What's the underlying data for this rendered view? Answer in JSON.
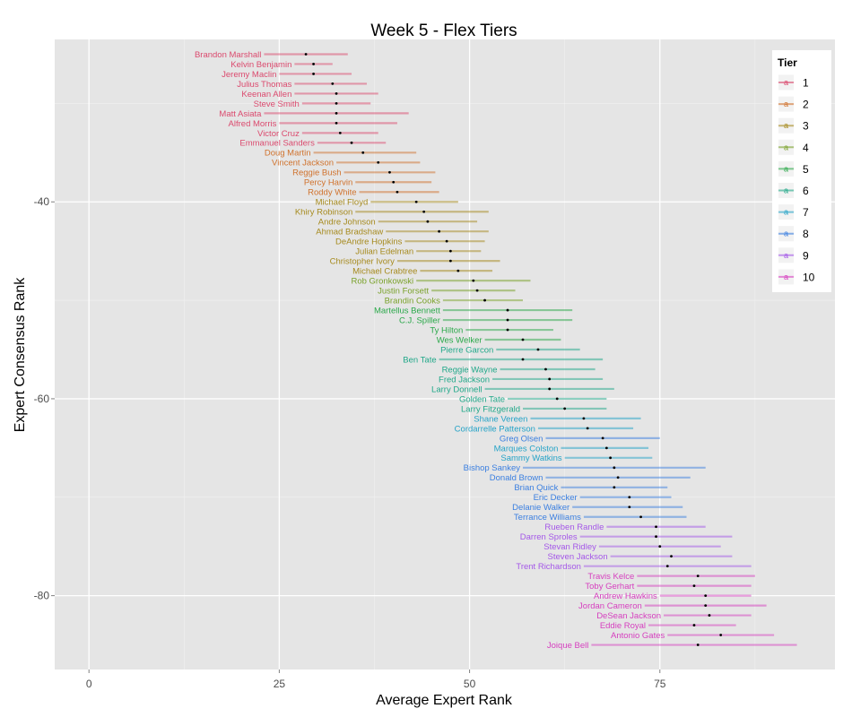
{
  "chart_data": {
    "type": "scatter",
    "title": "Week 5 - Flex Tiers",
    "xlabel": "Average Expert Rank",
    "ylabel": "Expert Consensus Rank",
    "xlim": [
      -4.5,
      98
    ],
    "ylim": [
      -87.5,
      -23.5
    ],
    "xticks": [
      0,
      25,
      50,
      75
    ],
    "yticks": [
      -40,
      -60,
      -80
    ],
    "grid": true,
    "legend": {
      "title": "Tier",
      "placement": "right",
      "labels": [
        "1",
        "2",
        "3",
        "4",
        "5",
        "6",
        "7",
        "8",
        "9",
        "10"
      ]
    },
    "tier_colors": [
      "#db4a6e",
      "#d0722d",
      "#a68a1e",
      "#7aa12a",
      "#2ba84a",
      "#21a889",
      "#25a3c7",
      "#3b7fe0",
      "#a457e8",
      "#d63fbf"
    ],
    "players": [
      {
        "name": "Brandon Marshall",
        "tier": 1,
        "x": 28.5,
        "lo": 23,
        "hi": 34,
        "y": -25
      },
      {
        "name": "Kelvin Benjamin",
        "tier": 1,
        "x": 29.5,
        "lo": 27,
        "hi": 32,
        "y": -26
      },
      {
        "name": "Jeremy Maclin",
        "tier": 1,
        "x": 29.5,
        "lo": 25,
        "hi": 34.5,
        "y": -27
      },
      {
        "name": "Julius Thomas",
        "tier": 1,
        "x": 32,
        "lo": 27,
        "hi": 36.5,
        "y": -28
      },
      {
        "name": "Keenan Allen",
        "tier": 1,
        "x": 32.5,
        "lo": 27,
        "hi": 38,
        "y": -29
      },
      {
        "name": "Steve Smith",
        "tier": 1,
        "x": 32.5,
        "lo": 28,
        "hi": 37,
        "y": -30
      },
      {
        "name": "Matt Asiata",
        "tier": 1,
        "x": 32.5,
        "lo": 23,
        "hi": 42,
        "y": -31
      },
      {
        "name": "Alfred Morris",
        "tier": 1,
        "x": 32.5,
        "lo": 25,
        "hi": 40.5,
        "y": -32
      },
      {
        "name": "Victor Cruz",
        "tier": 1,
        "x": 33,
        "lo": 28,
        "hi": 38,
        "y": -33
      },
      {
        "name": "Emmanuel Sanders",
        "tier": 1,
        "x": 34.5,
        "lo": 30,
        "hi": 39,
        "y": -34
      },
      {
        "name": "Doug Martin",
        "tier": 2,
        "x": 36,
        "lo": 29.5,
        "hi": 43,
        "y": -35
      },
      {
        "name": "Vincent Jackson",
        "tier": 2,
        "x": 38,
        "lo": 32.5,
        "hi": 43.5,
        "y": -36
      },
      {
        "name": "Reggie Bush",
        "tier": 2,
        "x": 39.5,
        "lo": 33.5,
        "hi": 45.5,
        "y": -37
      },
      {
        "name": "Percy Harvin",
        "tier": 2,
        "x": 40,
        "lo": 35,
        "hi": 45,
        "y": -38
      },
      {
        "name": "Roddy White",
        "tier": 2,
        "x": 40.5,
        "lo": 35.5,
        "hi": 46,
        "y": -39
      },
      {
        "name": "Michael Floyd",
        "tier": 3,
        "x": 43,
        "lo": 37,
        "hi": 48.5,
        "y": -40
      },
      {
        "name": "Khiry Robinson",
        "tier": 3,
        "x": 44,
        "lo": 35,
        "hi": 52.5,
        "y": -41
      },
      {
        "name": "Andre Johnson",
        "tier": 3,
        "x": 44.5,
        "lo": 38,
        "hi": 51,
        "y": -42
      },
      {
        "name": "Ahmad Bradshaw",
        "tier": 3,
        "x": 46,
        "lo": 39,
        "hi": 52.5,
        "y": -43
      },
      {
        "name": "DeAndre Hopkins",
        "tier": 3,
        "x": 47,
        "lo": 41.5,
        "hi": 52,
        "y": -44
      },
      {
        "name": "Julian Edelman",
        "tier": 3,
        "x": 47.5,
        "lo": 43,
        "hi": 51.5,
        "y": -45
      },
      {
        "name": "Christopher Ivory",
        "tier": 3,
        "x": 47.5,
        "lo": 40.5,
        "hi": 54,
        "y": -46
      },
      {
        "name": "Michael Crabtree",
        "tier": 3,
        "x": 48.5,
        "lo": 43.5,
        "hi": 53,
        "y": -47
      },
      {
        "name": "Rob Gronkowski",
        "tier": 4,
        "x": 50.5,
        "lo": 43,
        "hi": 58,
        "y": -48
      },
      {
        "name": "Justin Forsett",
        "tier": 4,
        "x": 51,
        "lo": 45,
        "hi": 56,
        "y": -49
      },
      {
        "name": "Brandin Cooks",
        "tier": 4,
        "x": 52,
        "lo": 46.5,
        "hi": 57,
        "y": -50
      },
      {
        "name": "Martellus Bennett",
        "tier": 5,
        "x": 55,
        "lo": 46.5,
        "hi": 63.5,
        "y": -51
      },
      {
        "name": "C.J. Spiller",
        "tier": 5,
        "x": 55,
        "lo": 46.5,
        "hi": 63.5,
        "y": -52
      },
      {
        "name": "Ty Hilton",
        "tier": 5,
        "x": 55,
        "lo": 49.5,
        "hi": 61,
        "y": -53
      },
      {
        "name": "Wes Welker",
        "tier": 5,
        "x": 57,
        "lo": 52,
        "hi": 62,
        "y": -54
      },
      {
        "name": "Pierre Garcon",
        "tier": 6,
        "x": 59,
        "lo": 53.5,
        "hi": 64.5,
        "y": -55
      },
      {
        "name": "Ben Tate",
        "tier": 6,
        "x": 57,
        "lo": 46,
        "hi": 67.5,
        "y": -56
      },
      {
        "name": "Reggie Wayne",
        "tier": 6,
        "x": 60,
        "lo": 54,
        "hi": 66.5,
        "y": -57
      },
      {
        "name": "Fred Jackson",
        "tier": 6,
        "x": 60.5,
        "lo": 53,
        "hi": 67.5,
        "y": -58
      },
      {
        "name": "Larry Donnell",
        "tier": 6,
        "x": 60.5,
        "lo": 52,
        "hi": 69,
        "y": -59
      },
      {
        "name": "Golden Tate",
        "tier": 6,
        "x": 61.5,
        "lo": 55,
        "hi": 68,
        "y": -60
      },
      {
        "name": "Larry Fitzgerald",
        "tier": 6,
        "x": 62.5,
        "lo": 57,
        "hi": 68,
        "y": -61
      },
      {
        "name": "Shane Vereen",
        "tier": 7,
        "x": 65,
        "lo": 58,
        "hi": 72.5,
        "y": -62
      },
      {
        "name": "Cordarrelle Patterson",
        "tier": 7,
        "x": 65.5,
        "lo": 59,
        "hi": 71.5,
        "y": -63
      },
      {
        "name": "Greg Olsen",
        "tier": 8,
        "x": 67.5,
        "lo": 60,
        "hi": 75,
        "y": -64
      },
      {
        "name": "Marques Colston",
        "tier": 7,
        "x": 68,
        "lo": 62,
        "hi": 73.5,
        "y": -65
      },
      {
        "name": "Sammy Watkins",
        "tier": 7,
        "x": 68.5,
        "lo": 62.5,
        "hi": 74,
        "y": -66
      },
      {
        "name": "Bishop Sankey",
        "tier": 8,
        "x": 69,
        "lo": 57,
        "hi": 81,
        "y": -67
      },
      {
        "name": "Donald Brown",
        "tier": 8,
        "x": 69.5,
        "lo": 60,
        "hi": 79,
        "y": -68
      },
      {
        "name": "Brian Quick",
        "tier": 8,
        "x": 69,
        "lo": 62,
        "hi": 76,
        "y": -69
      },
      {
        "name": "Eric Decker",
        "tier": 8,
        "x": 71,
        "lo": 64.5,
        "hi": 76.5,
        "y": -70
      },
      {
        "name": "Delanie Walker",
        "tier": 8,
        "x": 71,
        "lo": 63.5,
        "hi": 78,
        "y": -71
      },
      {
        "name": "Terrance Williams",
        "tier": 8,
        "x": 72.5,
        "lo": 65,
        "hi": 78.5,
        "y": -72
      },
      {
        "name": "Rueben Randle",
        "tier": 9,
        "x": 74.5,
        "lo": 68,
        "hi": 81,
        "y": -73
      },
      {
        "name": "Darren Sproles",
        "tier": 9,
        "x": 74.5,
        "lo": 64.5,
        "hi": 84.5,
        "y": -74
      },
      {
        "name": "Stevan Ridley",
        "tier": 9,
        "x": 75,
        "lo": 67,
        "hi": 83,
        "y": -75
      },
      {
        "name": "Steven Jackson",
        "tier": 9,
        "x": 76.5,
        "lo": 68.5,
        "hi": 84.5,
        "y": -76
      },
      {
        "name": "Trent Richardson",
        "tier": 9,
        "x": 76,
        "lo": 65,
        "hi": 87,
        "y": -77
      },
      {
        "name": "Travis Kelce",
        "tier": 10,
        "x": 80,
        "lo": 72,
        "hi": 87.5,
        "y": -78
      },
      {
        "name": "Toby Gerhart",
        "tier": 10,
        "x": 79.5,
        "lo": 72,
        "hi": 87,
        "y": -79
      },
      {
        "name": "Andrew Hawkins",
        "tier": 10,
        "x": 81,
        "lo": 75,
        "hi": 87,
        "y": -80
      },
      {
        "name": "Jordan Cameron",
        "tier": 10,
        "x": 81,
        "lo": 73,
        "hi": 89,
        "y": -81
      },
      {
        "name": "DeSean Jackson",
        "tier": 10,
        "x": 81.5,
        "lo": 75.5,
        "hi": 87,
        "y": -82
      },
      {
        "name": "Eddie Royal",
        "tier": 10,
        "x": 79.5,
        "lo": 73.5,
        "hi": 85,
        "y": -83
      },
      {
        "name": "Antonio Gates",
        "tier": 10,
        "x": 83,
        "lo": 76,
        "hi": 90,
        "y": -84
      },
      {
        "name": "Joique Bell",
        "tier": 10,
        "x": 80,
        "lo": 66,
        "hi": 93,
        "y": -85
      }
    ]
  }
}
